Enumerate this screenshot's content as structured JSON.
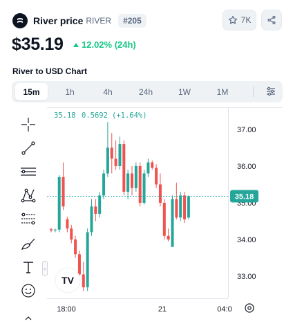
{
  "header": {
    "coin_name": "River price",
    "coin_symbol": "RIVER",
    "rank": "#205",
    "watchlist_count": "7K"
  },
  "price": {
    "value": "$35.19",
    "change": "12.02% (24h)"
  },
  "chart_section": {
    "title": "River to USD Chart",
    "tabs": [
      {
        "label": "15m",
        "active": true
      },
      {
        "label": "1h"
      },
      {
        "label": "4h"
      },
      {
        "label": "24h"
      },
      {
        "label": "1W"
      },
      {
        "label": "1M"
      }
    ]
  },
  "toolbar": {
    "tools": [
      "crosshair-icon",
      "trend-line-icon",
      "horizontal-lines-icon",
      "pattern-icon",
      "fib-levels-icon",
      "brush-icon",
      "text-icon",
      "emoji-icon",
      "chevron-up-icon"
    ]
  },
  "chart": {
    "legend": {
      "close": "35.18",
      "change": "0.5692",
      "change_pct": "(+1.64%)"
    },
    "current_price_label": "35.18",
    "logo_text": "TV",
    "colors": {
      "up": "#26a69a",
      "down": "#ef5350",
      "text": "#131722",
      "accent": "#16c784"
    }
  },
  "chart_data": {
    "type": "candlestick",
    "x_ticks": [
      "18:00",
      "21",
      "04:0"
    ],
    "y_ticks": [
      "37.00",
      "36.00",
      "35.00",
      "34.00",
      "33.00"
    ],
    "ylim": [
      32.4,
      37.6
    ],
    "last_price": 35.18,
    "candles": [
      {
        "o": 34.28,
        "h": 34.32,
        "l": 34.2,
        "c": 34.25
      },
      {
        "o": 34.25,
        "h": 34.3,
        "l": 34.2,
        "c": 34.27
      },
      {
        "o": 34.27,
        "h": 35.75,
        "l": 34.2,
        "c": 35.7
      },
      {
        "o": 35.7,
        "h": 36.1,
        "l": 34.8,
        "c": 34.9
      },
      {
        "o": 34.55,
        "h": 34.62,
        "l": 34.2,
        "c": 34.3
      },
      {
        "o": 34.3,
        "h": 34.4,
        "l": 33.9,
        "c": 34.0
      },
      {
        "o": 34.0,
        "h": 34.1,
        "l": 33.5,
        "c": 33.6
      },
      {
        "o": 33.6,
        "h": 33.7,
        "l": 32.95,
        "c": 33.05
      },
      {
        "o": 33.05,
        "h": 33.4,
        "l": 32.6,
        "c": 32.7
      },
      {
        "o": 32.7,
        "h": 34.3,
        "l": 32.6,
        "c": 34.2
      },
      {
        "o": 34.2,
        "h": 35.1,
        "l": 34.1,
        "c": 34.9
      },
      {
        "o": 34.9,
        "h": 35.1,
        "l": 34.5,
        "c": 34.7
      },
      {
        "o": 34.7,
        "h": 35.3,
        "l": 34.6,
        "c": 35.2
      },
      {
        "o": 35.2,
        "h": 35.9,
        "l": 35.1,
        "c": 35.8
      },
      {
        "o": 35.8,
        "h": 37.2,
        "l": 35.7,
        "c": 36.5
      },
      {
        "o": 36.5,
        "h": 36.9,
        "l": 35.8,
        "c": 36.2
      },
      {
        "o": 36.2,
        "h": 36.7,
        "l": 35.9,
        "c": 36.0
      },
      {
        "o": 36.0,
        "h": 36.8,
        "l": 35.9,
        "c": 36.6
      },
      {
        "o": 36.6,
        "h": 36.7,
        "l": 35.2,
        "c": 35.3
      },
      {
        "o": 35.3,
        "h": 35.9,
        "l": 35.1,
        "c": 35.8
      },
      {
        "o": 35.8,
        "h": 36.0,
        "l": 35.2,
        "c": 35.4
      },
      {
        "o": 35.4,
        "h": 36.1,
        "l": 35.3,
        "c": 36.0
      },
      {
        "o": 36.0,
        "h": 36.1,
        "l": 34.9,
        "c": 35.0
      },
      {
        "o": 35.0,
        "h": 35.9,
        "l": 34.95,
        "c": 35.8
      },
      {
        "o": 35.8,
        "h": 36.2,
        "l": 35.7,
        "c": 36.1
      },
      {
        "o": 36.1,
        "h": 36.15,
        "l": 35.9,
        "c": 35.95
      },
      {
        "o": 35.95,
        "h": 36.05,
        "l": 35.4,
        "c": 35.5
      },
      {
        "o": 35.5,
        "h": 35.8,
        "l": 34.9,
        "c": 35.0
      },
      {
        "o": 35.0,
        "h": 35.1,
        "l": 34.0,
        "c": 34.1
      },
      {
        "o": 34.1,
        "h": 34.3,
        "l": 33.95,
        "c": 34.0
      },
      {
        "o": 33.8,
        "h": 35.2,
        "l": 33.8,
        "c": 35.1
      },
      {
        "o": 35.1,
        "h": 35.55,
        "l": 34.55,
        "c": 34.6
      },
      {
        "o": 34.6,
        "h": 35.3,
        "l": 34.5,
        "c": 35.2
      },
      {
        "o": 35.2,
        "h": 35.3,
        "l": 34.45,
        "c": 34.55
      },
      {
        "o": 34.6,
        "h": 35.2,
        "l": 34.55,
        "c": 35.18
      }
    ]
  }
}
